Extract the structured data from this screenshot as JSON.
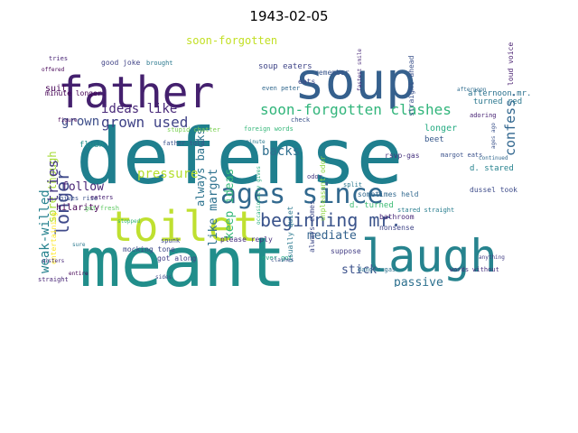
{
  "title": "1943-02-05",
  "words": [
    {
      "text": "defense",
      "color": "#1f7f8e"
    },
    {
      "text": "meant",
      "color": "#218e8b"
    },
    {
      "text": "soup",
      "color": "#35608d"
    },
    {
      "text": "father",
      "color": "#44206e"
    },
    {
      "text": "toilet",
      "color": "#bfe030"
    },
    {
      "text": "laugh",
      "color": "#26838e"
    },
    {
      "text": "ages since",
      "color": "#31688e"
    },
    {
      "text": "beginning mr.",
      "color": "#3a538b"
    },
    {
      "text": "soon-forgotten clashes",
      "color": "#31b57b"
    },
    {
      "text": "grown used",
      "color": "#404387"
    },
    {
      "text": "ideas like",
      "color": "#482979"
    },
    {
      "text": "like margot",
      "color": "#2d718e"
    },
    {
      "text": "keep ideas",
      "color": "#35b779"
    },
    {
      "text": "always backs",
      "color": "#2c738e"
    },
    {
      "text": "backs",
      "color": "#2e6e8e"
    },
    {
      "text": "pressure",
      "color": "#b4de2c"
    },
    {
      "text": "longer",
      "color": "#3f4a8a"
    },
    {
      "text": "weak-willed",
      "color": "#26828e"
    },
    {
      "text": "sore though",
      "color": "#a5db36"
    },
    {
      "text": "tries",
      "color": "#453781"
    },
    {
      "text": "grown",
      "color": "#3d4e8a"
    },
    {
      "text": "follow",
      "color": "#482475"
    },
    {
      "text": "confess.",
      "color": "#31668e"
    },
    {
      "text": "mediate",
      "color": "#33628d"
    },
    {
      "text": "passive",
      "color": "#2d708e"
    },
    {
      "text": "stick",
      "color": "#3b518b"
    },
    {
      "text": "soon-forgotten",
      "color": "#c2df23"
    },
    {
      "text": "suit",
      "color": "#440154"
    },
    {
      "text": "hilarity",
      "color": "#440154"
    },
    {
      "text": "beet",
      "color": "#38598c"
    },
    {
      "text": "longer",
      "color": "#25ab82"
    },
    {
      "text": "soup eaters",
      "color": "#404688"
    },
    {
      "text": "margot eats",
      "color": "#3b528b"
    },
    {
      "text": "afternoon mr.",
      "color": "#2c728e"
    },
    {
      "text": "turned red",
      "color": "#2a778e"
    },
    {
      "text": "loud voice",
      "color": "#481f70"
    },
    {
      "text": "rsvp-gas",
      "color": "#46337e"
    },
    {
      "text": "d. stared",
      "color": "#26828e"
    },
    {
      "text": "d. turned",
      "color": "#3dbc74"
    },
    {
      "text": "please reply",
      "color": "#46307e"
    },
    {
      "text": "got along",
      "color": "#424086"
    },
    {
      "text": "dussel took",
      "color": "#3e4c8a"
    },
    {
      "text": "minute longer.",
      "color": "#440154"
    },
    {
      "text": "gives rise",
      "color": "#3b528b"
    },
    {
      "text": "entertaining",
      "color": "#fde725"
    },
    {
      "text": "bathroom",
      "color": "#482878"
    },
    {
      "text": "nonsense",
      "color": "#404688"
    },
    {
      "text": "good joke",
      "color": "#414487"
    },
    {
      "text": "brought",
      "color": "#2a788e"
    },
    {
      "text": "remember",
      "color": "#39568c"
    },
    {
      "text": "father told",
      "color": "#3b528b"
    },
    {
      "text": "stupid chatter",
      "color": "#7ad151"
    },
    {
      "text": "flush",
      "color": "#21918c"
    },
    {
      "text": "spunk",
      "color": "#3e4989"
    },
    {
      "text": "ever got",
      "color": "#22a884"
    },
    {
      "text": "split",
      "color": "#2a788e"
    },
    {
      "text": "sometimes held",
      "color": "#31688e"
    },
    {
      "text": "unpleasant odor",
      "color": "#8fd744"
    },
    {
      "text": "suppose",
      "color": "#433e85"
    },
    {
      "text": "straight",
      "color": "#482576"
    },
    {
      "text": "stared straight",
      "color": "#287d8e"
    },
    {
      "text": "words without",
      "color": "#46307e"
    },
    {
      "text": "danger-gas",
      "color": "#2d708e"
    },
    {
      "text": "mocking tone",
      "color": "#3e4a89"
    },
    {
      "text": "foreign words",
      "color": "#35b779"
    },
    {
      "text": "eaters",
      "color": "#482173"
    },
    {
      "text": "got fresh",
      "color": "#5ec962"
    },
    {
      "text": "always comes",
      "color": "#3e4989"
    },
    {
      "text": "usually quiet",
      "color": "#2a788e"
    },
    {
      "text": "clashes",
      "color": "#3b528b"
    },
    {
      "text": "adoring",
      "color": "#482475"
    },
    {
      "text": "check",
      "color": "#3b528b"
    },
    {
      "text": "odor",
      "color": "#453882"
    },
    {
      "text": "eats",
      "color": "#3e4a89"
    },
    {
      "text": "even peter",
      "color": "#31688e"
    },
    {
      "text": "straight ahead",
      "color": "#3b528b"
    },
    {
      "text": "fastest smile",
      "color": "#482878"
    },
    {
      "text": "figure",
      "color": "#440154"
    },
    {
      "text": "minute",
      "color": "#2a788e"
    },
    {
      "text": "afternoon",
      "color": "#2f6c8e"
    },
    {
      "text": "occasionally gives",
      "color": "#29af7f"
    },
    {
      "text": "ages ago",
      "color": "#3b528b"
    },
    {
      "text": "continued",
      "color": "#31688e"
    },
    {
      "text": "entire",
      "color": "#440154"
    },
    {
      "text": "sure",
      "color": "#2a788e"
    },
    {
      "text": "sides",
      "color": "#3e4a89"
    },
    {
      "text": "sisters",
      "color": "#482878"
    },
    {
      "text": "stopped",
      "color": "#35b779"
    },
    {
      "text": "anything",
      "color": "#433e85"
    },
    {
      "text": "offered",
      "color": "#440154"
    },
    {
      "text": "tries",
      "color": "#482475"
    }
  ]
}
